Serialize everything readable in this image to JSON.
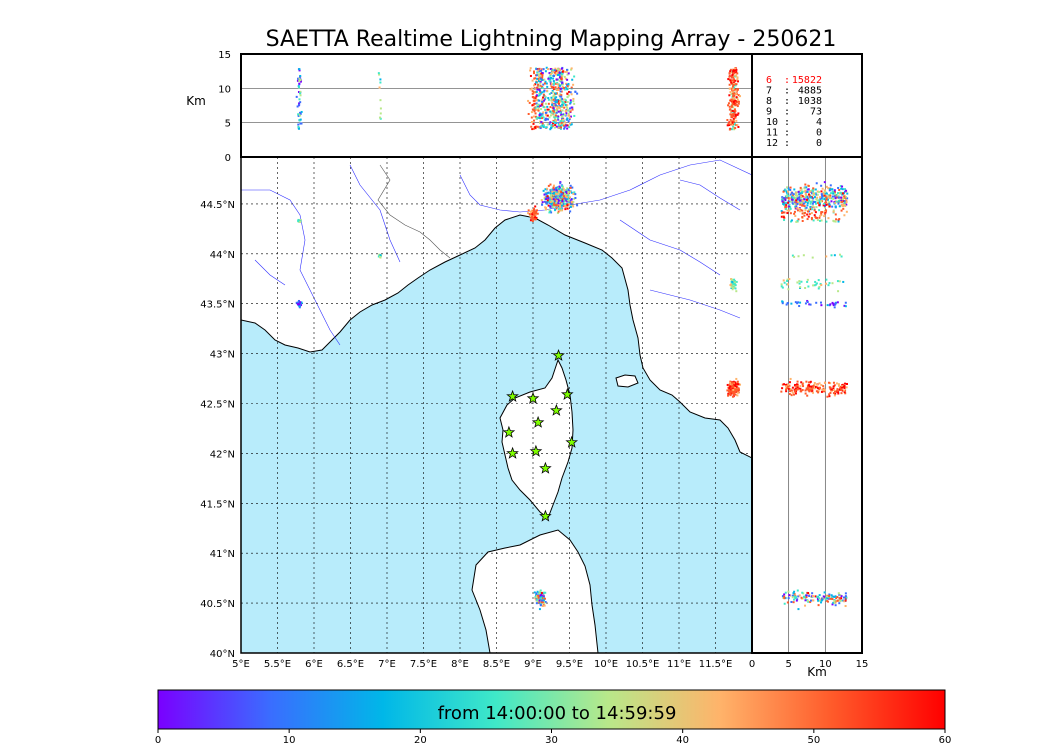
{
  "title": "SAETTA Realtime Lightning Mapping Array - 250621",
  "time_range_label": "from 14:00:00 to 14:59:59",
  "colorbar": {
    "ticks": [
      "0",
      "10",
      "20",
      "30",
      "40",
      "50",
      "60"
    ],
    "stops": [
      "#7a00ff",
      "#3a6dff",
      "#00b7e8",
      "#3fe8c8",
      "#b8e88a",
      "#ffb36a",
      "#ff5a2a",
      "#ff0000"
    ]
  },
  "altitude_axis": {
    "label": "Km",
    "ticks": [
      "15",
      "10",
      "5",
      "0"
    ],
    "gridlines_km": [
      5,
      10
    ]
  },
  "side_axis": {
    "label": "Km",
    "ticks": [
      "0",
      "5",
      "10",
      "15"
    ]
  },
  "map": {
    "lon_ticks": [
      "5°E",
      "5.5°E",
      "6°E",
      "6.5°E",
      "7°E",
      "7.5°E",
      "8°E",
      "8.5°E",
      "9°E",
      "9.5°E",
      "10°E",
      "10.5°E",
      "11°E",
      "11.5°E"
    ],
    "lat_ticks": [
      "44.5°N",
      "44°N",
      "43.5°N",
      "43°N",
      "42.5°N",
      "42°N",
      "41.5°N",
      "41°N",
      "40.5°N",
      "40°N"
    ],
    "sea_color": "#b8ecfb",
    "land_color": "#ffffff",
    "station_color": "#7fff00",
    "stations": [
      {
        "lon": 9.35,
        "lat": 42.98
      },
      {
        "lon": 8.72,
        "lat": 42.57
      },
      {
        "lon": 9.0,
        "lat": 42.55
      },
      {
        "lon": 9.47,
        "lat": 42.59
      },
      {
        "lon": 9.32,
        "lat": 42.43
      },
      {
        "lon": 9.07,
        "lat": 42.31
      },
      {
        "lon": 8.67,
        "lat": 42.21
      },
      {
        "lon": 9.53,
        "lat": 42.11
      },
      {
        "lon": 8.72,
        "lat": 42.0
      },
      {
        "lon": 9.04,
        "lat": 42.02
      },
      {
        "lon": 9.17,
        "lat": 41.85
      },
      {
        "lon": 9.17,
        "lat": 41.37
      }
    ],
    "clusters": [
      {
        "lon": 9.35,
        "lat": 44.55,
        "spread_lon": 0.35,
        "spread_lat": 0.2,
        "alt": "mixed",
        "count": 420
      },
      {
        "lon": 9.0,
        "lat": 44.4,
        "spread_lon": 0.12,
        "spread_lat": 0.1,
        "alt": "high",
        "count": 60
      },
      {
        "lon": 11.75,
        "lat": 43.7,
        "spread_lon": 0.08,
        "spread_lat": 0.1,
        "alt": "mid",
        "count": 40
      },
      {
        "lon": 11.75,
        "lat": 42.65,
        "spread_lon": 0.12,
        "spread_lat": 0.12,
        "alt": "high",
        "count": 180
      },
      {
        "lon": 9.1,
        "lat": 40.55,
        "spread_lon": 0.1,
        "spread_lat": 0.12,
        "alt": "mixed",
        "count": 140
      },
      {
        "lon": 5.8,
        "lat": 43.5,
        "spread_lon": 0.06,
        "spread_lat": 0.05,
        "alt": "low",
        "count": 35
      },
      {
        "lon": 5.8,
        "lat": 44.33,
        "spread_lon": 0.04,
        "spread_lat": 0.03,
        "alt": "mid",
        "count": 15
      },
      {
        "lon": 6.9,
        "lat": 43.98,
        "spread_lon": 0.03,
        "spread_lat": 0.03,
        "alt": "mid",
        "count": 10
      }
    ]
  },
  "legend_rows": [
    {
      "label": "6",
      "value": "15822",
      "color": "#ff0000"
    },
    {
      "label": "7",
      "value": "4885",
      "color": "#000000"
    },
    {
      "label": "8",
      "value": "1038",
      "color": "#000000"
    },
    {
      "label": "9",
      "value": "73",
      "color": "#000000"
    },
    {
      "label": "10",
      "value": "4",
      "color": "#000000"
    },
    {
      "label": "11",
      "value": "0",
      "color": "#000000"
    },
    {
      "label": "12",
      "value": "0",
      "color": "#000000"
    }
  ]
}
